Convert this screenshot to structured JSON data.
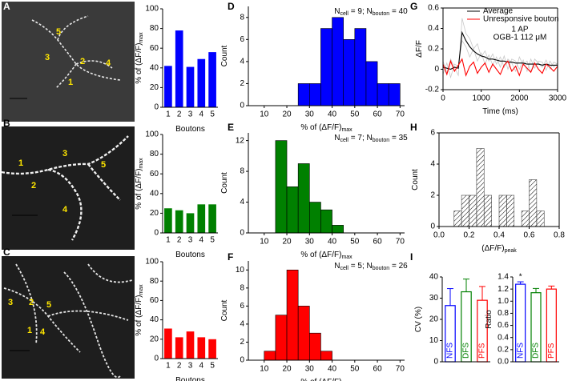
{
  "panel_labels": [
    "A",
    "B",
    "C",
    "D",
    "E",
    "F",
    "G",
    "H",
    "I"
  ],
  "images": [
    {
      "labels": [
        "5",
        "3",
        "2",
        "1",
        "4"
      ]
    },
    {
      "labels": [
        "1",
        "2",
        "3",
        "4",
        "5"
      ]
    },
    {
      "labels": [
        "3",
        "2",
        "5",
        "1",
        "4"
      ]
    }
  ],
  "chart_data": [
    {
      "type": "bar",
      "categories": [
        "1",
        "2",
        "3",
        "4",
        "5"
      ],
      "values": [
        42,
        78,
        41,
        49,
        56
      ],
      "color": "#0000ff",
      "xlabel": "Boutons",
      "ylabel": "% of (ΔF/F)",
      "ylabel_sub": "max",
      "ylim": [
        0,
        100
      ],
      "yticks": [
        0,
        20,
        40,
        60,
        80,
        100
      ]
    },
    {
      "type": "bar",
      "categories": [
        "1",
        "2",
        "3",
        "4",
        "5"
      ],
      "values": [
        25,
        23,
        20,
        29,
        29
      ],
      "color": "#008000",
      "xlabel": "Boutons",
      "ylabel": "% of (ΔF/F)",
      "ylabel_sub": "max",
      "ylim": [
        0,
        100
      ],
      "yticks": [
        0,
        20,
        40,
        60,
        80,
        100
      ]
    },
    {
      "type": "bar",
      "categories": [
        "1",
        "2",
        "3",
        "4",
        "5"
      ],
      "values": [
        31,
        22,
        28,
        22,
        20
      ],
      "color": "#ff0000",
      "xlabel": "Boutons",
      "ylabel": "% of (ΔF/F)",
      "ylabel_sub": "max",
      "ylim": [
        0,
        100
      ],
      "yticks": [
        0,
        20,
        40,
        60,
        80,
        100
      ]
    },
    {
      "type": "histogram",
      "bins": [
        25,
        30,
        35,
        40,
        45,
        50,
        55,
        60,
        65,
        70
      ],
      "values": [
        2,
        2,
        7,
        8,
        6,
        7,
        4,
        2,
        2
      ],
      "color": "#0000ff",
      "annotation": [
        "N",
        "cell",
        " = 9; N",
        "bouton",
        " = 40"
      ],
      "xlabel": "% of (ΔF/F)",
      "xlabel_sub": "max",
      "ylabel": "Count",
      "xlim": [
        3,
        72
      ],
      "xticks": [
        10,
        20,
        30,
        40,
        50,
        60,
        70
      ],
      "ylim": [
        0,
        9
      ],
      "yticks": [
        0,
        2,
        4,
        6,
        8
      ]
    },
    {
      "type": "histogram",
      "bins": [
        15,
        20,
        25,
        30,
        35,
        40,
        45
      ],
      "values": [
        12,
        6,
        9,
        4,
        3,
        1
      ],
      "color": "#008000",
      "annotation": [
        "N",
        "cell",
        " = 7; N",
        "bouton",
        " = 35"
      ],
      "xlabel": "% of (ΔF/F)",
      "xlabel_sub": "max",
      "ylabel": "Count",
      "xlim": [
        3,
        72
      ],
      "xticks": [
        10,
        20,
        30,
        40,
        50,
        60,
        70
      ],
      "ylim": [
        0,
        13
      ],
      "yticks": [
        0,
        4,
        8,
        12
      ]
    },
    {
      "type": "histogram",
      "bins": [
        10,
        15,
        20,
        25,
        30,
        35,
        40
      ],
      "values": [
        1,
        5,
        10,
        6,
        3,
        1
      ],
      "color": "#ff0000",
      "annotation": [
        "N",
        "cell",
        " = 5; N",
        "bouton",
        " = 26"
      ],
      "xlabel": "% of (ΔF/F)",
      "xlabel_sub": "max",
      "ylabel": "Count",
      "xlim": [
        3,
        72
      ],
      "xticks": [
        10,
        20,
        30,
        40,
        50,
        60,
        70
      ],
      "ylim": [
        0,
        11
      ],
      "yticks": [
        0,
        2,
        4,
        6,
        8,
        10
      ]
    },
    {
      "type": "line",
      "frame": "box",
      "legend": "upper right",
      "x": [
        0,
        100,
        200,
        300,
        400,
        500,
        600,
        700,
        800,
        900,
        1000,
        1100,
        1200,
        1300,
        1400,
        1500,
        1600,
        1700,
        1800,
        1900,
        2000,
        2100,
        2200,
        2300,
        2400,
        2500,
        2600,
        2700,
        2800,
        2900,
        3000
      ],
      "traces": [
        {
          "color": "#c8c8c8",
          "values": [
            0.08,
            -0.04,
            0.1,
            0.02,
            -0.06,
            0.5,
            0.35,
            0.3,
            0.2,
            0.25,
            0.12,
            0.18,
            0.08,
            0.15,
            0.05,
            0.12,
            0.02,
            0.1,
            0.06,
            -0.02,
            0.12,
            0.04,
            0.08,
            -0.03,
            0.1,
            0.06,
            0.02,
            0.09,
            0.0,
            0.07,
            0.05
          ]
        },
        {
          "color": "#c8c8c8",
          "values": [
            -0.05,
            0.06,
            -0.08,
            0.05,
            0.03,
            0.28,
            0.22,
            0.12,
            0.2,
            0.08,
            0.16,
            0.05,
            0.14,
            0.04,
            0.12,
            0.02,
            0.13,
            0.0,
            0.1,
            0.08,
            0.0,
            0.09,
            -0.02,
            0.1,
            0.01,
            0.08,
            0.07,
            -0.01,
            0.08,
            0.02,
            0.06
          ]
        }
      ],
      "series": [
        {
          "name": "Average",
          "color": "#000000",
          "values": [
            0.02,
            0.01,
            0.0,
            0.02,
            0.01,
            0.36,
            0.28,
            0.22,
            0.18,
            0.15,
            0.13,
            0.12,
            0.1,
            0.1,
            0.09,
            0.08,
            0.08,
            0.07,
            0.07,
            0.06,
            0.06,
            0.06,
            0.05,
            0.05,
            0.05,
            0.05,
            0.04,
            0.05,
            0.04,
            0.04,
            0.04
          ]
        },
        {
          "name": "Unresponsive bouton",
          "color": "#ff0000",
          "values": [
            0.05,
            -0.05,
            0.08,
            -0.02,
            0.04,
            0.1,
            -0.06,
            0.03,
            0.07,
            -0.04,
            0.02,
            0.06,
            -0.03,
            0.05,
            0.0,
            -0.05,
            0.04,
            0.08,
            -0.02,
            0.03,
            -0.06,
            0.05,
            0.01,
            -0.03,
            0.06,
            0.0,
            -0.04,
            0.05,
            0.02,
            -0.02,
            0.03
          ]
        }
      ],
      "annotations": [
        "1 AP",
        "OGB-1 112 μM"
      ],
      "xlabel": "Time (ms)",
      "ylabel": "ΔF/F",
      "xlim": [
        0,
        3000
      ],
      "xticks": [
        0,
        1000,
        2000,
        3000
      ],
      "ylim": [
        -0.2,
        0.6
      ],
      "yticks": [
        -0.2,
        0,
        0.2,
        0.4,
        0.6
      ]
    },
    {
      "type": "histogram",
      "frame": "box",
      "hatch": true,
      "color": "#444444",
      "bins": [
        0.1,
        0.15,
        0.2,
        0.25,
        0.3,
        0.35,
        0.4,
        0.45,
        0.5,
        0.55,
        0.6,
        0.65,
        0.7
      ],
      "values": [
        1,
        2,
        2,
        5,
        2,
        0,
        2,
        2,
        0,
        1,
        3,
        1
      ],
      "xlabel": "(ΔF/F)",
      "xlabel_sub": "peak",
      "ylabel": "Count",
      "xlim": [
        0,
        0.8
      ],
      "xticks": [
        {
          "value": 0,
          "label": "0.0"
        },
        0.2,
        0.4,
        0.6,
        0.8
      ],
      "ylim": [
        0,
        6
      ],
      "yticks": [
        0,
        2,
        4,
        6
      ]
    },
    {
      "type": "bar",
      "outline": true,
      "categories": [
        "NFS",
        "DFS",
        "PFS"
      ],
      "values": [
        26.5,
        33,
        29
      ],
      "errors": [
        8,
        6,
        6.5
      ],
      "colors": [
        "#0000ff",
        "#008000",
        "#ff0000"
      ],
      "ylabel": "CV (%)",
      "ylim": [
        0,
        40
      ],
      "yticks": [
        0,
        10,
        20,
        30,
        40
      ]
    },
    {
      "type": "bar",
      "outline": true,
      "categories": [
        "NFS",
        "DFS",
        "PFS"
      ],
      "values": [
        1.28,
        1.14,
        1.2
      ],
      "errors": [
        0.04,
        0.07,
        0.05
      ],
      "colors": [
        "#0000ff",
        "#008000",
        "#ff0000"
      ],
      "annotations": [
        "*"
      ],
      "ylabel": "Ratio",
      "ylim": [
        0,
        1.4
      ],
      "yticks": [
        {
          "value": 0,
          "label": "0.0"
        },
        0.2,
        0.4,
        0.6,
        0.8,
        {
          "value": 1,
          "label": "1.0"
        },
        1.2,
        1.4
      ]
    }
  ]
}
